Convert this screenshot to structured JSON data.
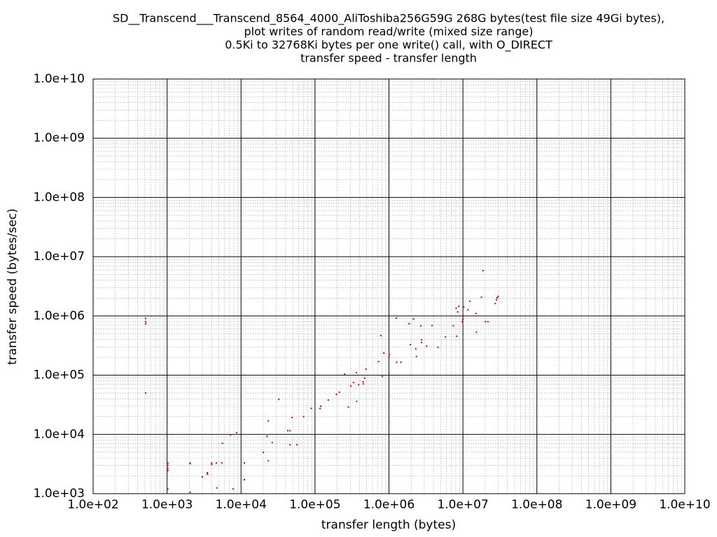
{
  "chart_data": {
    "type": "scatter",
    "title": [
      "SD__Transcend___Transcend_8564_4000_AliToshiba256G59G 268G bytes(test file size 49Gi bytes),",
      "plot writes of random read/write (mixed size range)",
      "0.5Ki to 32768Ki bytes per one write() call, with O_DIRECT",
      "transfer speed - transfer length"
    ],
    "xlabel": "transfer length (bytes)",
    "ylabel": "transfer speed (bytes/sec)",
    "xscale": "log",
    "yscale": "log",
    "grid": true,
    "minor_grid": true,
    "color": "#e00000",
    "xlim": [
      100,
      10000000000
    ],
    "ylim": [
      1000,
      10000000000
    ],
    "xticks": [
      {
        "value": 100,
        "label": "1.0e+02"
      },
      {
        "value": 1000,
        "label": "1.0e+03"
      },
      {
        "value": 10000,
        "label": "1.0e+04"
      },
      {
        "value": 100000,
        "label": "1.0e+05"
      },
      {
        "value": 1000000,
        "label": "1.0e+06"
      },
      {
        "value": 10000000,
        "label": "1.0e+07"
      },
      {
        "value": 100000000,
        "label": "1.0e+08"
      },
      {
        "value": 1000000000,
        "label": "1.0e+09"
      },
      {
        "value": 10000000000,
        "label": "1.0e+10"
      }
    ],
    "yticks": [
      {
        "value": 1000,
        "label": "1.0e+03"
      },
      {
        "value": 10000,
        "label": "1.0e+04"
      },
      {
        "value": 100000,
        "label": "1.0e+05"
      },
      {
        "value": 1000000,
        "label": "1.0e+06"
      },
      {
        "value": 10000000,
        "label": "1.0e+07"
      },
      {
        "value": 100000000,
        "label": "1.0e+08"
      },
      {
        "value": 1000000000,
        "label": "1.0e+09"
      },
      {
        "value": 10000000000,
        "label": "1.0e+10"
      }
    ],
    "x": [
      512,
      512,
      512,
      512,
      1024,
      1024,
      1024,
      1024,
      1024,
      2048,
      2048,
      2048,
      3000,
      3500,
      3500,
      4000,
      4000,
      4650,
      4700,
      5500,
      5600,
      7200,
      7800,
      8700,
      11100,
      11100,
      20000,
      22400,
      23400,
      23400,
      26400,
      32400,
      42900,
      46000,
      46000,
      49000,
      57000,
      70000,
      89000,
      117000,
      120000,
      151000,
      195000,
      214000,
      251000,
      282000,
      305000,
      331000,
      363000,
      366000,
      389000,
      447000,
      450000,
      470000,
      490000,
      724000,
      776000,
      813000,
      851000,
      1000000,
      1010000,
      1260000,
      1270000,
      1450000,
      1870000,
      1950000,
      2140000,
      2300000,
      2350000,
      2700000,
      2750000,
      2760000,
      3230000,
      3830000,
      4600000,
      5800000,
      7400000,
      8100000,
      8200000,
      8500000,
      8800000,
      10000000,
      9800000,
      10300000,
      11700000,
      12400000,
      15000000,
      15200000,
      17800000,
      18700000,
      20000000,
      21800000,
      27400000,
      28400000,
      29000000,
      30000000
    ],
    "y": [
      910000,
      800000,
      740000,
      50000,
      3300,
      3000,
      2660,
      2450,
      1200,
      3300,
      3200,
      1050,
      1920,
      2260,
      2130,
      3300,
      3100,
      3300,
      1250,
      3300,
      7100,
      9800,
      1200,
      10700,
      3300,
      1720,
      4970,
      9300,
      16900,
      3600,
      7300,
      39000,
      11600,
      11600,
      6700,
      19300,
      6700,
      20000,
      27500,
      27500,
      30000,
      38000,
      47500,
      51600,
      104000,
      29000,
      66000,
      75000,
      110000,
      36000,
      69000,
      77000,
      71000,
      89000,
      127000,
      170000,
      467000,
      96000,
      236000,
      200000,
      224000,
      920000,
      166000,
      166000,
      740000,
      327000,
      890000,
      278000,
      207000,
      680000,
      397000,
      356000,
      309000,
      690000,
      295000,
      445000,
      680000,
      1350000,
      455000,
      1170000,
      1460000,
      870000,
      800000,
      1410000,
      1270000,
      1770000,
      1100000,
      530000,
      2070000,
      5800000,
      800000,
      800000,
      1620000,
      1870000,
      2020000,
      2140000
    ]
  }
}
